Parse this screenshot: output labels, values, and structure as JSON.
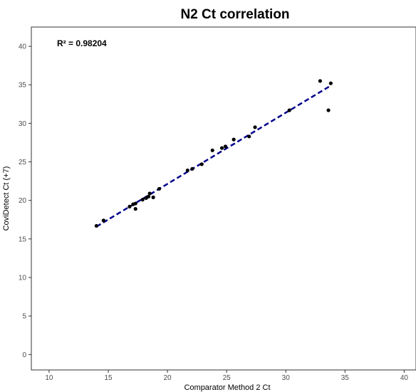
{
  "chart_data": {
    "type": "scatter",
    "title": "N2 Ct correlation",
    "xlabel": "Comparator Method 2 Ct",
    "ylabel": "CoviDetect Ct (+7)",
    "annotation": "R² = 0.98204",
    "xlim": [
      8.5,
      41
    ],
    "ylim": [
      -2,
      42.5
    ],
    "xticks": [
      10,
      15,
      20,
      25,
      30,
      35,
      40
    ],
    "yticks": [
      0,
      5,
      10,
      15,
      20,
      25,
      30,
      35,
      40
    ],
    "grid": false,
    "points": [
      {
        "x": 14.0,
        "y": 16.7
      },
      {
        "x": 14.6,
        "y": 17.4
      },
      {
        "x": 16.8,
        "y": 19.2
      },
      {
        "x": 17.1,
        "y": 19.5
      },
      {
        "x": 17.3,
        "y": 19.6
      },
      {
        "x": 17.3,
        "y": 18.9
      },
      {
        "x": 17.9,
        "y": 20.1
      },
      {
        "x": 18.2,
        "y": 20.3
      },
      {
        "x": 18.4,
        "y": 20.5
      },
      {
        "x": 18.5,
        "y": 20.9
      },
      {
        "x": 18.8,
        "y": 20.4
      },
      {
        "x": 19.3,
        "y": 21.5
      },
      {
        "x": 21.7,
        "y": 23.9
      },
      {
        "x": 22.1,
        "y": 24.1
      },
      {
        "x": 22.9,
        "y": 24.7
      },
      {
        "x": 23.8,
        "y": 26.5
      },
      {
        "x": 24.6,
        "y": 26.8
      },
      {
        "x": 24.9,
        "y": 27.0
      },
      {
        "x": 25.6,
        "y": 27.9
      },
      {
        "x": 26.9,
        "y": 28.3
      },
      {
        "x": 27.4,
        "y": 29.5
      },
      {
        "x": 30.3,
        "y": 31.7
      },
      {
        "x": 32.9,
        "y": 35.5
      },
      {
        "x": 33.6,
        "y": 31.7
      },
      {
        "x": 33.8,
        "y": 35.2
      }
    ],
    "trendline": {
      "x": [
        14.0,
        33.8
      ],
      "y": [
        16.6,
        34.9
      ],
      "color": "#00008b",
      "style": "dashed"
    },
    "point_color": "#000000"
  }
}
